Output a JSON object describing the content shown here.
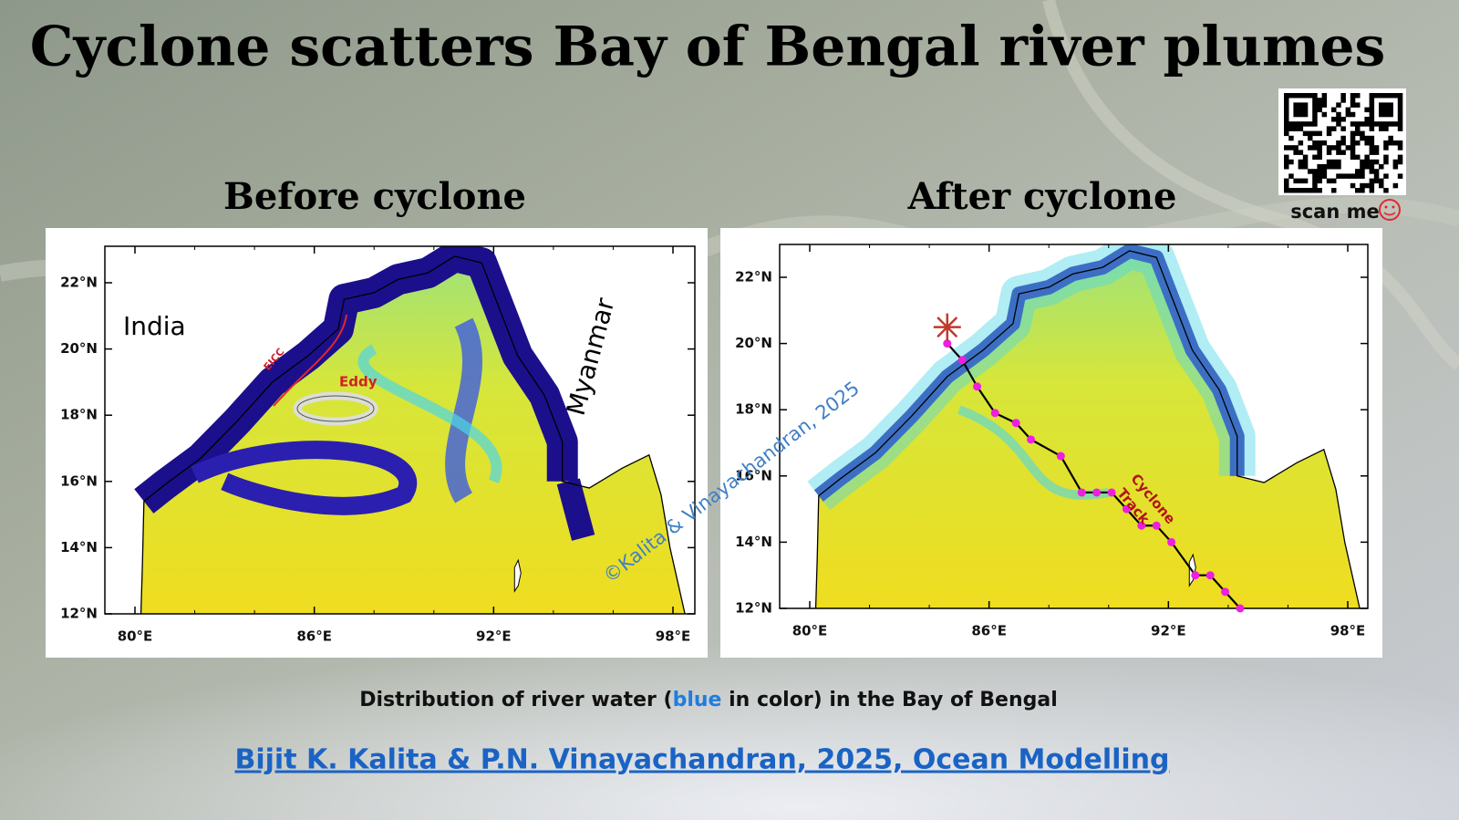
{
  "title": "Cyclone scatters Bay of Bengal river plumes",
  "qr_caption": "scan me",
  "panels": [
    {
      "heading": "Before cyclone",
      "lat_ticks": [
        "22°N",
        "20°N",
        "18°N",
        "16°N",
        "14°N",
        "12°N"
      ],
      "lon_ticks": [
        "80°E",
        "86°E",
        "92°E",
        "98°E"
      ],
      "labels": {
        "india": "India",
        "myanmar": "Myanmar",
        "eicc": "EICC",
        "eddy": "Eddy"
      }
    },
    {
      "heading": "After cyclone",
      "lat_ticks": [
        "22°N",
        "20°N",
        "18°N",
        "16°N",
        "14°N",
        "12°N"
      ],
      "lon_ticks": [
        "80°E",
        "86°E",
        "92°E",
        "98°E"
      ],
      "labels": {
        "cyclone": "Cyclone",
        "track": "Track"
      }
    }
  ],
  "watermark": "©Kalita &  Vinayachandran, 2025",
  "caption": {
    "before": "Distribution of river water (",
    "highlight": "blue",
    "after": " in color) in the Bay of Bengal"
  },
  "citation": "Bijit K. Kalita & P.N. Vinayachandran, 2025, Ocean Modelling"
}
